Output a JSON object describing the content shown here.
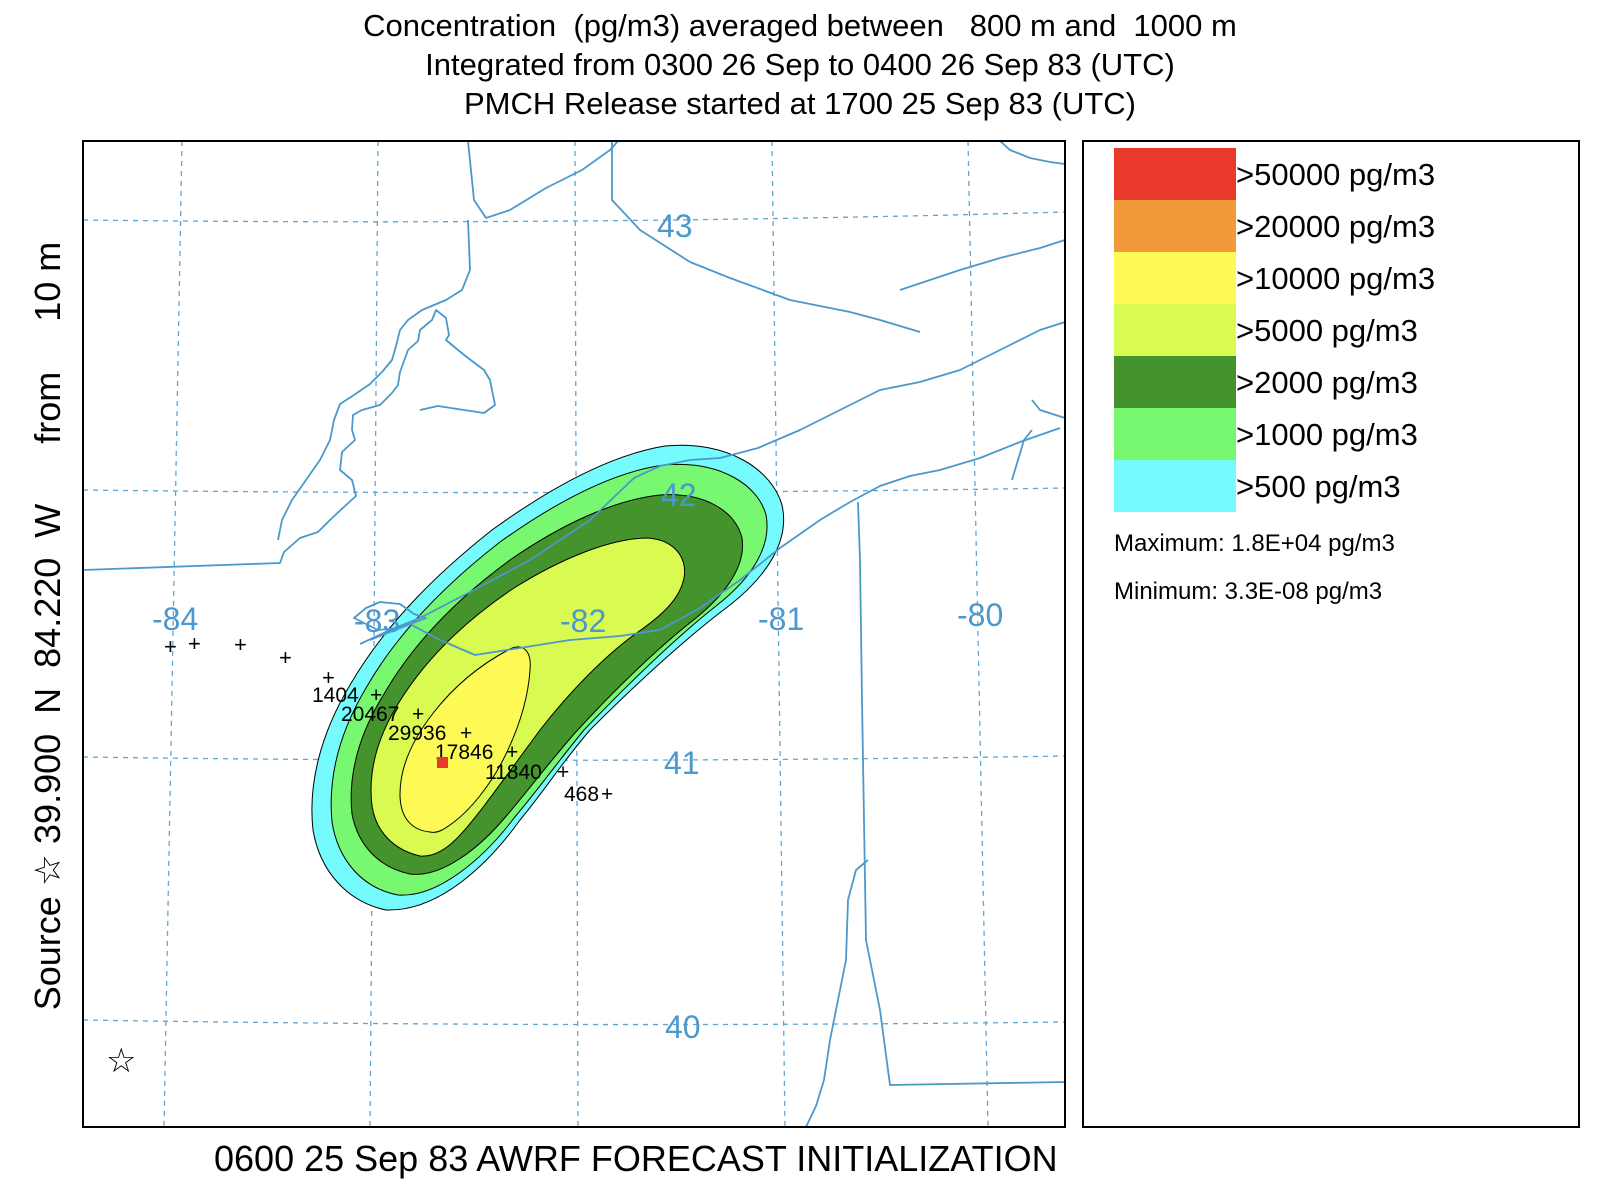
{
  "title": {
    "line1": "Concentration  (pg/m3) averaged between   800 m and  1000 m",
    "line2": "Integrated from 0300 26 Sep to 0400 26 Sep 83 (UTC)",
    "line3": "PMCH Release started at 1700 25 Sep 83 (UTC)"
  },
  "side_label": "Source ☆ 39.900  N  84.220  W      from     10 m",
  "footer": "0600 25 Sep 83 AWRF FORECAST INITIALIZATION",
  "map": {
    "longitude_labels": [
      "-84",
      "-83",
      "-82",
      "-81",
      "-80"
    ],
    "latitude_labels": [
      "43",
      "42",
      "41",
      "40"
    ],
    "source_marker_icon": "star-icon",
    "sampler_marker_icon": "plus-icon",
    "sampler_values": [
      "1404",
      "20467",
      "29936",
      "17846",
      "11840",
      "468"
    ],
    "colors": {
      "boundaries": "#4b98cc",
      "grid": "#5aa6d8",
      "max_marker": "#e8392b"
    }
  },
  "legend": {
    "levels": [
      {
        "label": ">50000 pg/m3",
        "color": "#e8392b"
      },
      {
        "label": ">20000 pg/m3",
        "color": "#f19a3a"
      },
      {
        "label": ">10000 pg/m3",
        "color": "#fdfa55"
      },
      {
        "label": ">5000 pg/m3",
        "color": "#d9fa50"
      },
      {
        "label": ">2000 pg/m3",
        "color": "#44932d"
      },
      {
        "label": ">1000 pg/m3",
        "color": "#78f870"
      },
      {
        "label": ">500 pg/m3",
        "color": "#75fbfd"
      }
    ],
    "maximum": "Maximum: 1.8E+04 pg/m3",
    "minimum": "Minimum: 3.3E-08 pg/m3"
  }
}
